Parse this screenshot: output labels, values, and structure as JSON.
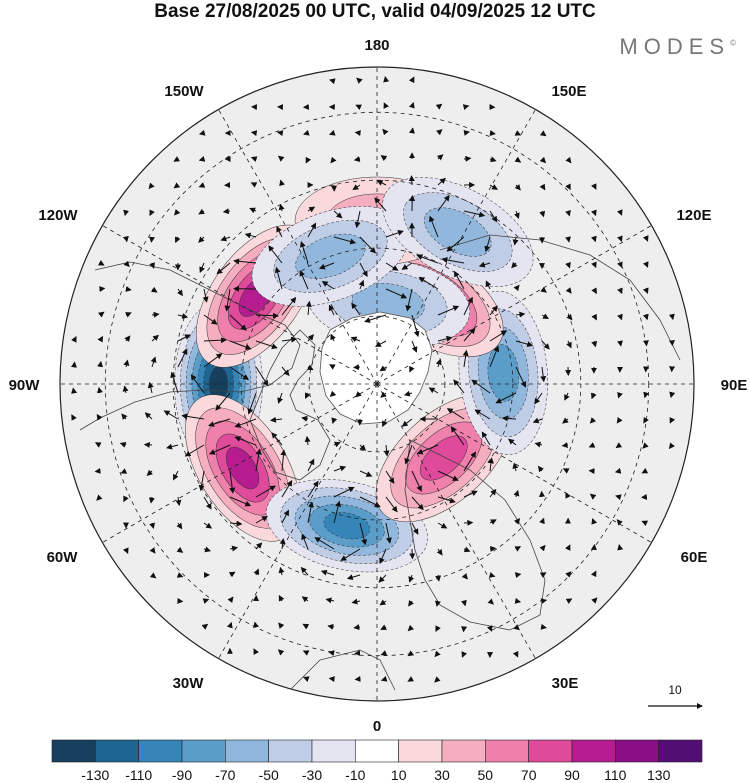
{
  "title": "Base 27/08/2025 00 UTC, valid 04/09/2025 12 UTC",
  "brand": "MODES",
  "brand_mark": "©",
  "map": {
    "projection": "north-polar-stereographic",
    "longitude_labels": [
      {
        "text": "180",
        "lon": 180
      },
      {
        "text": "150E",
        "lon": 150
      },
      {
        "text": "120E",
        "lon": 120
      },
      {
        "text": "90E",
        "lon": 90
      },
      {
        "text": "60E",
        "lon": 60
      },
      {
        "text": "30E",
        "lon": 30
      },
      {
        "text": "0",
        "lon": 0
      },
      {
        "text": "30W",
        "lon": -30
      },
      {
        "text": "60W",
        "lon": -60
      },
      {
        "text": "90W",
        "lon": -90
      },
      {
        "text": "120W",
        "lon": -120
      },
      {
        "text": "150W",
        "lon": -150
      }
    ],
    "anomaly_centers": [
      {
        "sign": "negative",
        "lon": -90,
        "lat": 55,
        "value": -130
      },
      {
        "sign": "positive",
        "lon": -126,
        "lat": 57,
        "value": 100
      },
      {
        "sign": "positive",
        "lon": -58,
        "lat": 55,
        "value": 100
      },
      {
        "sign": "negative",
        "lon": -12,
        "lat": 58,
        "value": -90
      },
      {
        "sign": "positive",
        "lon": 42,
        "lat": 68,
        "value": 80
      },
      {
        "sign": "negative",
        "lon": 95,
        "lat": 62,
        "value": -70
      },
      {
        "sign": "positive",
        "lon": 148,
        "lat": 68,
        "value": 90
      },
      {
        "sign": "negative",
        "lon": 172,
        "lat": 72,
        "value": -60
      },
      {
        "sign": "positive",
        "lon": 180,
        "lat": 54,
        "value": 40
      },
      {
        "sign": "negative",
        "lon": -160,
        "lat": 60,
        "value": -50
      },
      {
        "sign": "negative",
        "lon": 152,
        "lat": 52,
        "value": -60
      }
    ],
    "vector_reference": {
      "value": "10"
    }
  },
  "colorbar": {
    "levels": [
      "-130",
      "-110",
      "-90",
      "-70",
      "-50",
      "-30",
      "-10",
      "10",
      "30",
      "50",
      "70",
      "90",
      "110",
      "130"
    ],
    "colors": [
      "#163f5e",
      "#1e6591",
      "#3585b8",
      "#5b9dc9",
      "#91b8dc",
      "#c0cde6",
      "#e5e4f1",
      "#ffffff",
      "#fad9dc",
      "#f4aebf",
      "#ef7fab",
      "#df4a9b",
      "#b41c8f",
      "#8a0e86",
      "#520e73"
    ]
  }
}
